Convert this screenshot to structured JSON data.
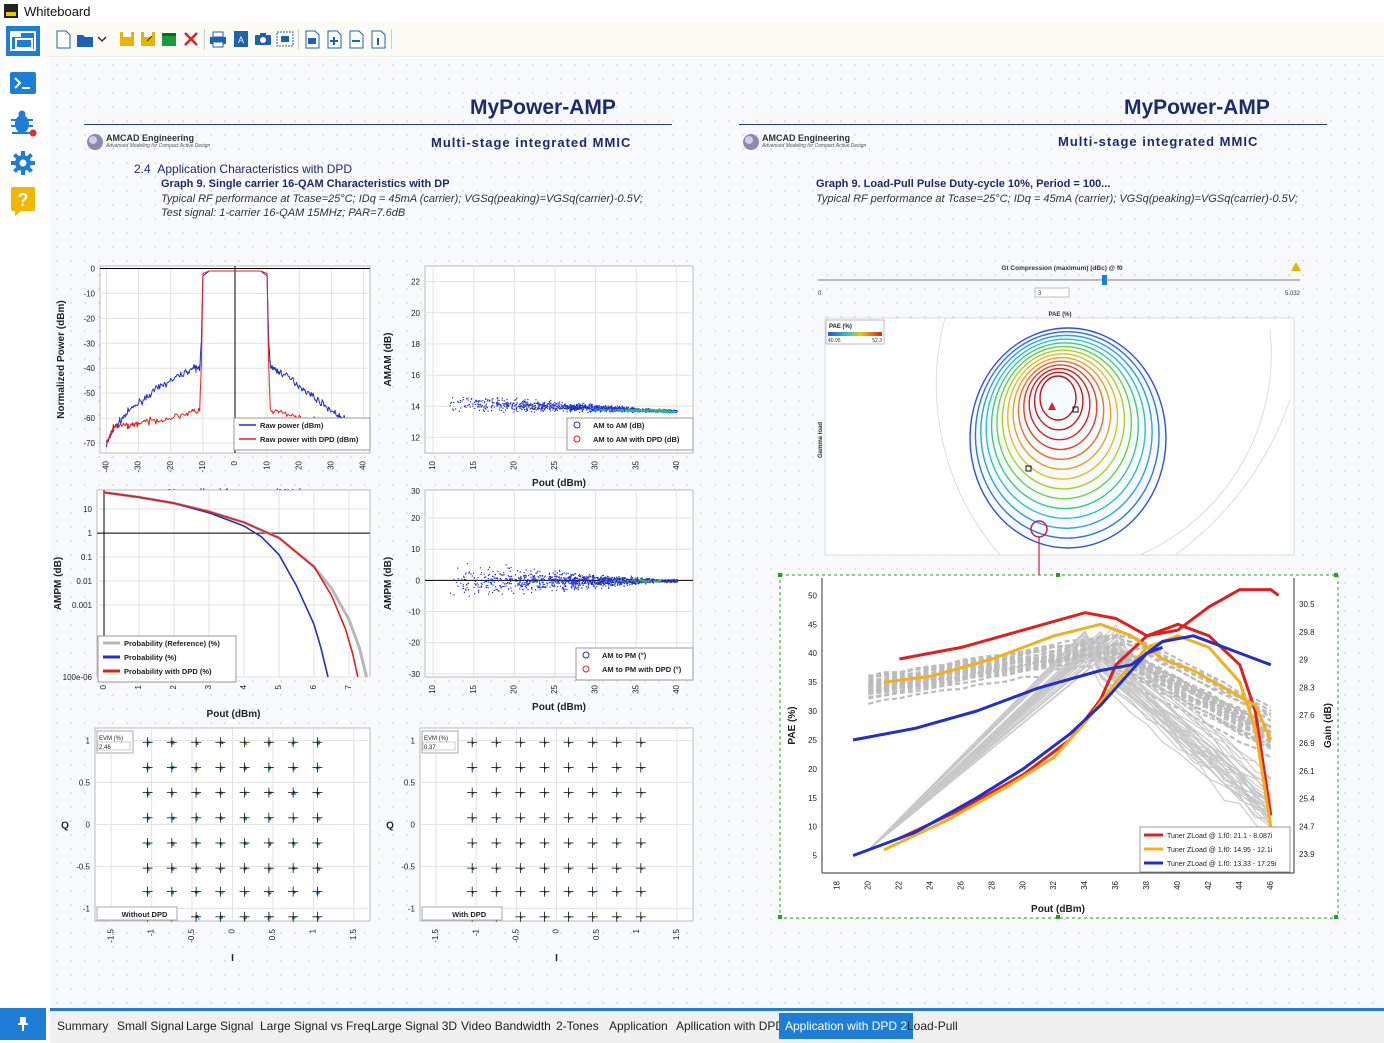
{
  "window": {
    "title": "Whiteboard"
  },
  "tabs": [
    {
      "label": "Summary",
      "active": false
    },
    {
      "label": "Small Signal",
      "active": false
    },
    {
      "label": "Large Signal",
      "active": false
    },
    {
      "label": "Large Signal vs Freq",
      "active": false
    },
    {
      "label": "Large Signal 3D",
      "active": false
    },
    {
      "label": "Video Bandwidth",
      "active": false
    },
    {
      "label": "2-Tones",
      "active": false
    },
    {
      "label": "Application",
      "active": false
    },
    {
      "label": "Apllication with DPD",
      "active": false
    },
    {
      "label": "Application with DPD 2",
      "active": true
    },
    {
      "label": "Load-Pull",
      "active": false
    }
  ],
  "colors": {
    "accent": "#1e7ed6",
    "heading": "#1c2a6e",
    "red": "#e02020",
    "blue": "#2030c8",
    "orange": "#f0b020",
    "grey": "#b8b8b8"
  },
  "left": {
    "title": "MyPower-AMP",
    "subtitle": "Multi-stage integrated MMIC",
    "logo": "AMCAD Engineering",
    "logo_tag": "Advanced Modeling for Compact Active Design",
    "section_num": "2.4",
    "section": "Application Characteristics with DPD",
    "graph_title": "Graph 9. Single carrier 16-QAM Characteristics with DP",
    "desc1": "Typical RF performance at Tcase=25°C; IDq = 45mA (carrier); VGSq(peaking)=VGSq(carrier)-0.5V;",
    "desc2": "Test signal: 1-carrier 16-QAM 15MHz; PAR=7.6dB"
  },
  "right": {
    "title": "MyPower-AMP",
    "subtitle": "Multi-stage integrated MMIC",
    "logo": "AMCAD Engineering",
    "logo_tag": "Advanced Modeling for Compact Active Design",
    "graph_title": "Graph 9. Load-Pull Pulse Duty-cycle 10%, Period = 100...",
    "desc": "Typical RF performance at Tcase=25°C; IDq = 45mA (carrier); VGSq(peaking)=VGSq(carrier)-0.5V;",
    "slider_label": "Gt Compression (maximum) (dBc) @ f0",
    "slider_min": "0",
    "slider_max": "5.032",
    "slider_value": "3",
    "smith_title": "PAE (%)",
    "smith_legend_title": "PAE (%)",
    "smith_legend_min": "40.95",
    "smith_legend_max": "52.3",
    "smith_ylabel": "Gamma load"
  },
  "chart_data": [
    {
      "type": "line",
      "id": "spectrum",
      "xlabel": "Normalized frequency (MHz)",
      "ylabel": "Normalized Power (dBm)",
      "xlim": [
        -42,
        42
      ],
      "ylim": [
        -74,
        1
      ],
      "xticks": [
        "-40",
        "-30",
        "-20",
        "-10",
        "0",
        "10",
        "20",
        "30",
        "40"
      ],
      "yticks": [
        "0",
        "-10",
        "-20",
        "-30",
        "-40",
        "-50",
        "-60",
        "-70"
      ],
      "series": [
        {
          "name": "Raw power (dBm)",
          "color": "#2030c8",
          "x": [
            -40,
            -38,
            -35,
            -32,
            -28,
            -24,
            -20,
            -16,
            -13,
            -11,
            -10.5,
            -10,
            -8,
            0,
            8,
            10,
            10.5,
            11,
            13,
            16,
            20,
            24,
            28,
            32,
            35,
            38,
            40
          ],
          "y": [
            -71,
            -65,
            -60,
            -56,
            -52,
            -48,
            -45,
            -42,
            -40,
            -40,
            -30,
            -3,
            -1,
            -1,
            -1,
            -3,
            -30,
            -39,
            -41,
            -43,
            -47,
            -51,
            -55,
            -59,
            -61,
            -63,
            -66
          ]
        },
        {
          "name": "Raw power with DPD (dBm)",
          "color": "#e02020",
          "x": [
            -40,
            -38,
            -36,
            -33,
            -30,
            -25,
            -20,
            -15,
            -11,
            -10.5,
            -10,
            -8,
            0,
            8,
            10,
            10.5,
            11,
            15,
            20,
            25,
            30,
            33,
            36,
            38,
            40
          ],
          "y": [
            -70,
            -64,
            -63,
            -63,
            -62,
            -61,
            -60,
            -58,
            -57,
            -40,
            -2,
            -1,
            -1,
            -1,
            -2,
            -40,
            -57,
            -58,
            -60,
            -61,
            -62,
            -62,
            -63,
            -64,
            -66
          ]
        }
      ]
    },
    {
      "type": "scatter",
      "id": "amam",
      "xlabel": "Pout (dBm)",
      "ylabel": "AMAM (dB)",
      "xlim": [
        9,
        42
      ],
      "ylim": [
        11,
        23
      ],
      "xticks": [
        "10",
        "15",
        "20",
        "25",
        "30",
        "35",
        "40"
      ],
      "yticks": [
        "12",
        "14",
        "16",
        "18",
        "20",
        "22"
      ],
      "series": [
        {
          "name": "AM to AM (dB)",
          "color": "#2030c8"
        },
        {
          "name": "AM to AM with DPD (dB)",
          "color": "#e02020"
        }
      ]
    },
    {
      "type": "line",
      "id": "ccdf",
      "xlabel": "Pout (dBm)",
      "ylabel": "AMPM (dB)",
      "xlim": [
        -0.2,
        7.6
      ],
      "ylim_log": [
        -6,
        1.8
      ],
      "xticks": [
        "0",
        "1",
        "2",
        "3",
        "4",
        "5",
        "6",
        "7"
      ],
      "yticks": [
        "10",
        "1",
        "0.1",
        "0.01",
        "0.001",
        "100e-06"
      ],
      "series": [
        {
          "name": "Probability (Reference) (%)",
          "color": "#b8b8b8",
          "x": [
            0,
            1,
            2,
            3,
            4,
            5,
            6,
            6.5,
            7,
            7.3,
            7.5
          ],
          "y": [
            1.7,
            1.5,
            1.25,
            0.9,
            0.45,
            -0.2,
            -1.4,
            -2.3,
            -3.6,
            -4.8,
            -6
          ]
        },
        {
          "name": "Probability (%)",
          "color": "#2030c8",
          "x": [
            0,
            1,
            2,
            3,
            4,
            4.5,
            5,
            5.5,
            6,
            6.2,
            6.4
          ],
          "y": [
            1.7,
            1.5,
            1.25,
            0.85,
            0.3,
            -0.15,
            -0.9,
            -2.2,
            -3.8,
            -4.8,
            -6
          ]
        },
        {
          "name": "Probability with DPD (%)",
          "color": "#e02020",
          "x": [
            0,
            1,
            2,
            3,
            4,
            5,
            6,
            6.5,
            6.9,
            7.1,
            7.25
          ],
          "y": [
            1.7,
            1.5,
            1.25,
            0.9,
            0.45,
            -0.2,
            -1.4,
            -2.6,
            -4.0,
            -5.0,
            -6
          ]
        }
      ]
    },
    {
      "type": "scatter",
      "id": "ampm",
      "xlabel": "Pout (dBm)",
      "ylabel": "AMPM (dB)",
      "xlim": [
        9,
        42
      ],
      "ylim": [
        -31,
        29
      ],
      "xticks": [
        "10",
        "15",
        "20",
        "25",
        "30",
        "35",
        "40"
      ],
      "yticks": [
        "20",
        "10",
        "0",
        "-10",
        "-20",
        "-30"
      ],
      "ytick_top": "30",
      "series": [
        {
          "name": "AM to PM (°)",
          "color": "#2030c8"
        },
        {
          "name": "AM to PM with DPD (°)",
          "color": "#e02020"
        }
      ]
    },
    {
      "type": "scatter",
      "id": "const_nodpd",
      "xlabel": "I",
      "ylabel": "Q",
      "xlim": [
        -1.7,
        1.7
      ],
      "ylim": [
        -1.15,
        1.15
      ],
      "xticks": [
        "-1.5",
        "-1",
        "-0.5",
        "0",
        "0.5",
        "1",
        "1.5"
      ],
      "yticks": [
        "1",
        "0.5",
        "0",
        "-0.5",
        "-1"
      ],
      "evm_label": "EVM (%)",
      "evm_value": "2.46",
      "caption": "Without DPD"
    },
    {
      "type": "scatter",
      "id": "const_dpd",
      "xlabel": "I",
      "ylabel": "Q",
      "xlim": [
        -1.7,
        1.7
      ],
      "ylim": [
        -1.15,
        1.15
      ],
      "xticks": [
        "-1.5",
        "-1",
        "-0.5",
        "0",
        "0.5",
        "1",
        "1.5"
      ],
      "yticks": [
        "1",
        "0.5",
        "0",
        "-0.5",
        "-1"
      ],
      "evm_label": "EVM (%)",
      "evm_value": "0.37",
      "caption": "With DPD"
    },
    {
      "type": "line",
      "id": "loadpull",
      "xlabel": "Pout (dBm)",
      "ylabel": "PAE (%)",
      "y2label": "Gain (dB)",
      "xlim": [
        17,
        47.5
      ],
      "ylim": [
        2,
        53
      ],
      "xticks": [
        "18",
        "20",
        "22",
        "24",
        "26",
        "28",
        "30",
        "32",
        "34",
        "36",
        "38",
        "40",
        "42",
        "44",
        "46"
      ],
      "yticks": [
        "5",
        "10",
        "15",
        "20",
        "25",
        "30",
        "35",
        "40",
        "45",
        "50"
      ],
      "y2ticks": [
        "30.5",
        "29.8",
        "29",
        "28.3",
        "27.6",
        "26.9",
        "26.1",
        "25.4",
        "24.7",
        "23.9"
      ],
      "series": [
        {
          "name": "Tuner ZLoad @ 1.f0: 21.1 - 8.087i",
          "color": "#e02020",
          "pae_x": [
            22,
            26,
            30,
            33,
            35,
            36,
            38,
            40,
            42,
            44,
            45,
            46
          ],
          "pae_y": [
            8,
            13,
            19,
            25,
            32,
            38,
            43,
            45,
            43,
            38,
            30,
            12
          ],
          "gain_x": [
            22,
            26,
            30,
            34,
            36,
            38,
            40,
            42,
            44,
            46,
            46.5
          ],
          "gain_y": [
            39,
            41,
            44,
            47,
            46,
            43,
            44,
            48,
            51,
            51,
            50
          ]
        },
        {
          "name": "Tuner ZLoad @ 1.f0: 14.95 - 12.1i",
          "color": "#f0b020",
          "pae_x": [
            21,
            25,
            29,
            32,
            34,
            36,
            38,
            40,
            42,
            44,
            45,
            46
          ],
          "pae_y": [
            6,
            11,
            17,
            22,
            28,
            35,
            41,
            43,
            41,
            35,
            27,
            10
          ],
          "gain_x": [
            21,
            24,
            28,
            32,
            35,
            37,
            39,
            41,
            43,
            45,
            46
          ],
          "gain_y": [
            35,
            36,
            39,
            43,
            45,
            43,
            39,
            37,
            34,
            31,
            25
          ]
        },
        {
          "name": "Tuner ZLoad @ 1.f0: 13.33 - 17.29i",
          "color": "#2030c8",
          "pae_x": [
            19,
            23,
            27,
            30,
            33,
            35,
            37,
            38,
            39
          ],
          "pae_y": [
            5,
            9,
            15,
            20,
            26,
            31,
            37,
            40,
            41
          ],
          "gain_x": [
            19,
            23,
            27,
            31,
            35,
            37,
            39,
            41,
            43,
            45,
            46
          ],
          "gain_y": [
            25,
            27,
            30,
            34,
            37,
            38,
            42,
            43,
            41,
            39,
            38
          ]
        }
      ]
    }
  ]
}
